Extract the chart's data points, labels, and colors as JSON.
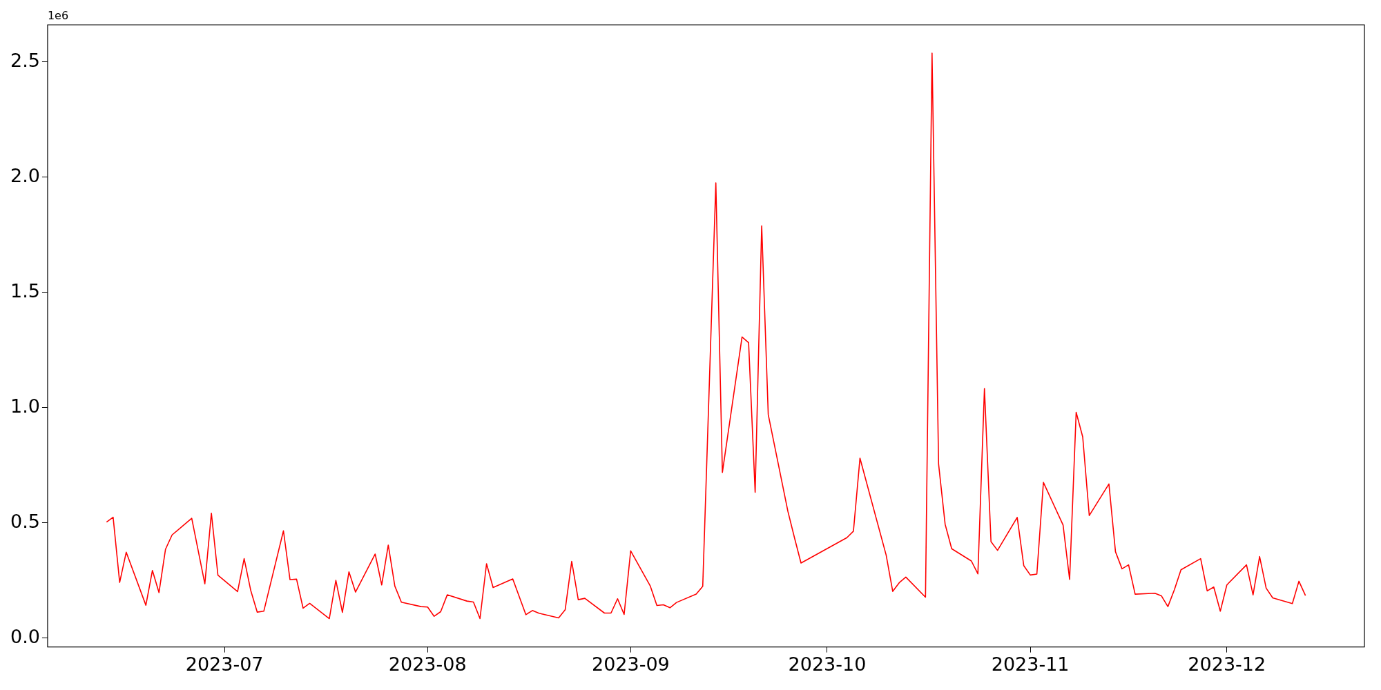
{
  "chart_data": {
    "type": "line",
    "annotations": [
      "1e6"
    ],
    "x": [
      "2023-06-13",
      "2023-06-14",
      "2023-06-15",
      "2023-06-16",
      "2023-06-19",
      "2023-06-20",
      "2023-06-21",
      "2023-06-22",
      "2023-06-23",
      "2023-06-26",
      "2023-06-28",
      "2023-06-29",
      "2023-06-30",
      "2023-07-03",
      "2023-07-04",
      "2023-07-05",
      "2023-07-06",
      "2023-07-07",
      "2023-07-10",
      "2023-07-11",
      "2023-07-12",
      "2023-07-13",
      "2023-07-14",
      "2023-07-17",
      "2023-07-18",
      "2023-07-19",
      "2023-07-20",
      "2023-07-21",
      "2023-07-24",
      "2023-07-25",
      "2023-07-26",
      "2023-07-27",
      "2023-07-28",
      "2023-07-31",
      "2023-08-01",
      "2023-08-02",
      "2023-08-03",
      "2023-08-04",
      "2023-08-07",
      "2023-08-08",
      "2023-08-09",
      "2023-08-10",
      "2023-08-11",
      "2023-08-14",
      "2023-08-16",
      "2023-08-17",
      "2023-08-18",
      "2023-08-21",
      "2023-08-22",
      "2023-08-23",
      "2023-08-24",
      "2023-08-25",
      "2023-08-28",
      "2023-08-29",
      "2023-08-30",
      "2023-08-31",
      "2023-09-01",
      "2023-09-04",
      "2023-09-05",
      "2023-09-06",
      "2023-09-07",
      "2023-09-08",
      "2023-09-11",
      "2023-09-12",
      "2023-09-14",
      "2023-09-15",
      "2023-09-18",
      "2023-09-19",
      "2023-09-20",
      "2023-09-21",
      "2023-09-22",
      "2023-09-25",
      "2023-09-26",
      "2023-09-27",
      "2023-10-04",
      "2023-10-05",
      "2023-10-06",
      "2023-10-10",
      "2023-10-11",
      "2023-10-12",
      "2023-10-13",
      "2023-10-16",
      "2023-10-17",
      "2023-10-18",
      "2023-10-19",
      "2023-10-20",
      "2023-10-23",
      "2023-10-24",
      "2023-10-25",
      "2023-10-26",
      "2023-10-27",
      "2023-10-30",
      "2023-10-31",
      "2023-11-01",
      "2023-11-02",
      "2023-11-03",
      "2023-11-06",
      "2023-11-07",
      "2023-11-08",
      "2023-11-09",
      "2023-11-10",
      "2023-11-13",
      "2023-11-14",
      "2023-11-15",
      "2023-11-16",
      "2023-11-17",
      "2023-11-20",
      "2023-11-21",
      "2023-11-22",
      "2023-11-23",
      "2023-11-24",
      "2023-11-27",
      "2023-11-28",
      "2023-11-29",
      "2023-11-30",
      "2023-12-01",
      "2023-12-04",
      "2023-12-05",
      "2023-12-06",
      "2023-12-07",
      "2023-12-08",
      "2023-12-11",
      "2023-12-12",
      "2023-12-13"
    ],
    "series": [
      {
        "color": "#ff0000",
        "values": [
          0.504,
          0.525,
          0.242,
          0.373,
          0.143,
          0.294,
          0.198,
          0.386,
          0.448,
          0.52,
          0.236,
          0.542,
          0.273,
          0.202,
          0.345,
          0.208,
          0.113,
          0.117,
          0.466,
          0.254,
          0.256,
          0.13,
          0.151,
          0.085,
          0.251,
          0.112,
          0.288,
          0.2,
          0.365,
          0.231,
          0.404,
          0.226,
          0.156,
          0.137,
          0.135,
          0.095,
          0.115,
          0.188,
          0.161,
          0.157,
          0.085,
          0.323,
          0.22,
          0.257,
          0.102,
          0.12,
          0.108,
          0.088,
          0.123,
          0.333,
          0.167,
          0.173,
          0.109,
          0.109,
          0.171,
          0.103,
          0.379,
          0.226,
          0.142,
          0.145,
          0.132,
          0.155,
          0.191,
          0.225,
          1.975,
          0.719,
          1.307,
          1.282,
          0.633,
          1.789,
          0.97,
          0.55,
          0.436,
          0.326,
          0.436,
          0.464,
          0.781,
          0.36,
          0.203,
          0.241,
          0.265,
          0.178,
          2.538,
          0.755,
          0.494,
          0.388,
          0.335,
          0.279,
          1.083,
          0.419,
          0.381,
          0.524,
          0.315,
          0.274,
          0.278,
          0.676,
          0.491,
          0.255,
          0.98,
          0.873,
          0.532,
          0.669,
          0.375,
          0.301,
          0.318,
          0.191,
          0.195,
          0.184,
          0.137,
          0.211,
          0.297,
          0.345,
          0.205,
          0.222,
          0.117,
          0.231,
          0.318,
          0.188,
          0.354,
          0.217,
          0.175,
          0.15,
          0.247,
          0.185
        ]
      }
    ],
    "xlim": [
      "2023-06-04",
      "2023-12-22"
    ],
    "xticks": [
      {
        "value": "2023-07-01",
        "label": "2023-07"
      },
      {
        "value": "2023-08-01",
        "label": "2023-08"
      },
      {
        "value": "2023-09-01",
        "label": "2023-09"
      },
      {
        "value": "2023-10-01",
        "label": "2023-10"
      },
      {
        "value": "2023-11-01",
        "label": "2023-11"
      },
      {
        "value": "2023-12-01",
        "label": "2023-12"
      }
    ],
    "ylim": [
      -0.038,
      2.661
    ],
    "yticks": [
      {
        "value": 0,
        "label": "0.0"
      },
      0.5,
      {
        "value": 1,
        "label": "1.0"
      },
      1.5,
      {
        "value": 2,
        "label": "2.0"
      },
      2.5
    ],
    "grid": false,
    "legend": false,
    "marker": "none",
    "line_style": "solid"
  }
}
